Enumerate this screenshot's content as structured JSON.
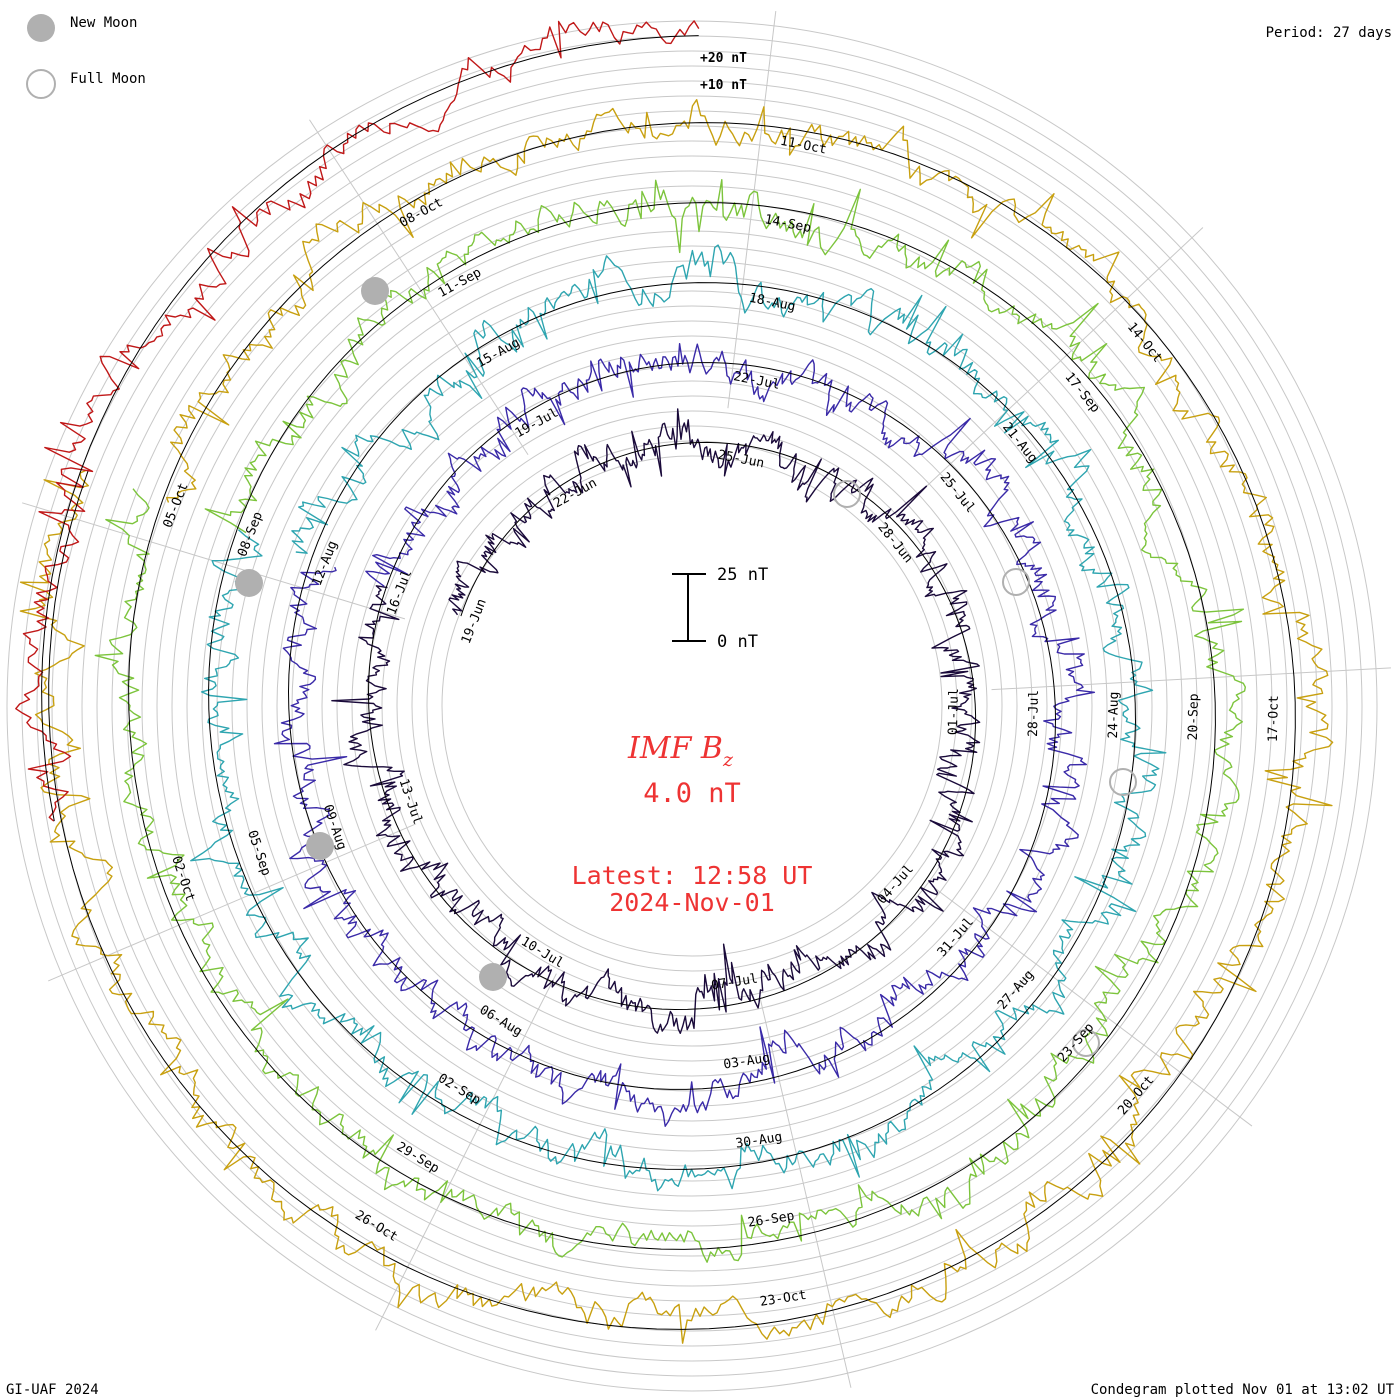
{
  "legend": {
    "new_moon_label": "New Moon",
    "full_moon_label": "Full Moon",
    "new_moon_color": "#b0b0b0",
    "full_moon_color": "#b0b0b0"
  },
  "header": {
    "period": "Period: 27 days"
  },
  "footer": {
    "credit": "GI-UAF 2024",
    "plotted": "Condegram plotted Nov 01 at 13:02 UT"
  },
  "center": {
    "title_main": "IMF B",
    "title_sub": "z",
    "value": "4.0 nT",
    "latest_line1": "Latest: 12:58 UT",
    "latest_line2": "2024-Nov-01",
    "scale_top": "25 nT",
    "scale_bottom": "0 nT"
  },
  "chart_data": {
    "type": "line",
    "title": "IMF Bz",
    "subtitle": "4.0 nT",
    "ring_labels": [
      "+20 nT",
      "+10 nT"
    ],
    "period_days": 27,
    "series": [
      {
        "name": "19-Jun to 16-Jul",
        "color": "#1a0a3a",
        "dates": [
          "19-Jun",
          "22-Jun",
          "25-Jun",
          "28-Jun",
          "01-Jul",
          "04-Jul",
          "07-Jul",
          "10-Jul",
          "13-Jul"
        ]
      },
      {
        "name": "16-Jul to 12-Aug",
        "color": "#3a2aa8",
        "dates": [
          "16-Jul",
          "19-Jul",
          "22-Jul",
          "25-Jul",
          "28-Jul",
          "31-Jul",
          "03-Aug",
          "06-Aug",
          "09-Aug"
        ]
      },
      {
        "name": "12-Aug to 08-Sep",
        "color": "#2ea5b0",
        "dates": [
          "12-Aug",
          "15-Aug",
          "18-Aug",
          "21-Aug",
          "24-Aug",
          "27-Aug",
          "30-Aug",
          "02-Sep",
          "05-Sep"
        ]
      },
      {
        "name": "08-Sep to 05-Oct",
        "color": "#7cc43c",
        "dates": [
          "08-Sep",
          "11-Sep",
          "14-Sep",
          "17-Sep",
          "20-Sep",
          "23-Sep",
          "26-Sep",
          "29-Sep",
          "02-Oct"
        ]
      },
      {
        "name": "05-Oct to 01-Nov",
        "color": "#c8a010",
        "dates": [
          "05-Oct",
          "08-Oct",
          "11-Oct",
          "14-Oct",
          "17-Oct",
          "20-Oct",
          "23-Oct",
          "26-Oct"
        ]
      },
      {
        "name": "latest",
        "color": "#c01818",
        "dates": []
      }
    ]
  }
}
